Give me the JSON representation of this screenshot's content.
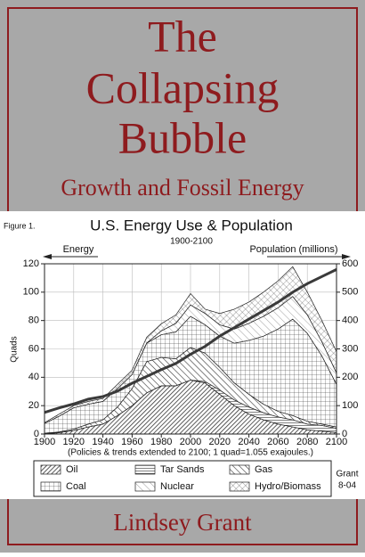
{
  "cover": {
    "title_lines": [
      "The",
      "Collapsing",
      "Bubble"
    ],
    "subtitle": "Growth and Fossil Energy",
    "author": "Lindsey Grant"
  },
  "chart_data": {
    "type": "stacked-area",
    "figure_label": "Figure 1.",
    "title": "U.S. Energy Use & Population",
    "subtitle": "1900-2100",
    "y_arrow_label": "Energy",
    "ylabel": "Quads",
    "y2label": "Population (millions)",
    "note": "(Policies & trends extended to 2100; 1 quad=1.055 exajoules.)",
    "credit": [
      "Grant",
      "8-04"
    ],
    "x": [
      1900,
      1910,
      1920,
      1930,
      1940,
      1950,
      1960,
      1970,
      1980,
      1990,
      2000,
      2010,
      2020,
      2030,
      2040,
      2050,
      2060,
      2070,
      2080,
      2090,
      2100
    ],
    "xlim": [
      1900,
      2100
    ],
    "xticks": [
      1900,
      1920,
      1940,
      1960,
      1980,
      2000,
      2020,
      2040,
      2060,
      2080,
      2100
    ],
    "ylim": [
      0,
      120
    ],
    "yticks": [
      0,
      20,
      40,
      60,
      80,
      100,
      120
    ],
    "y2lim": [
      0,
      600
    ],
    "y2ticks": [
      0,
      100,
      200,
      300,
      400,
      500,
      600
    ],
    "series": [
      {
        "name": "Oil",
        "color": "#333",
        "pattern": "dense-diagonal",
        "values": [
          0.1,
          1,
          2.5,
          5,
          7,
          13,
          20,
          29,
          34,
          34,
          38,
          36,
          28,
          20,
          14,
          10,
          7,
          5,
          3,
          2,
          1
        ]
      },
      {
        "name": "Tar Sands",
        "color": "#333",
        "pattern": "horizontal",
        "values": [
          0,
          0,
          0,
          0,
          0,
          0,
          0,
          0,
          0,
          0,
          0,
          1,
          3,
          4,
          5,
          5,
          5,
          5,
          4,
          4,
          3
        ]
      },
      {
        "name": "Gas",
        "color": "#333",
        "pattern": "diagonal",
        "values": [
          0.3,
          0.5,
          1,
          2,
          3,
          6,
          12,
          22,
          20,
          19,
          23,
          20,
          16,
          12,
          9,
          6,
          4,
          3,
          2,
          1,
          1
        ]
      },
      {
        "name": "Coal",
        "color": "#444",
        "pattern": "grid",
        "values": [
          7,
          11,
          15,
          14,
          13,
          13,
          10,
          13,
          16,
          19,
          22,
          20,
          22,
          28,
          38,
          48,
          58,
          68,
          62,
          48,
          30
        ]
      },
      {
        "name": "Nuclear",
        "color": "#666",
        "pattern": "light-diagonal",
        "values": [
          0,
          0,
          0,
          0,
          0,
          0,
          0,
          0.2,
          2.7,
          6,
          8,
          8,
          8,
          10,
          12,
          14,
          15,
          16,
          13,
          10,
          8
        ]
      },
      {
        "name": "Hydro/Biomass",
        "color": "#555",
        "pattern": "crosshatch",
        "values": [
          0.6,
          1.5,
          1.5,
          2,
          2,
          3,
          3,
          4,
          5,
          6,
          8,
          3,
          8,
          14,
          15,
          17,
          19,
          21,
          16,
          15,
          15
        ]
      },
      {
        "axis": "y2",
        "color": "#3a3a3a",
        "values": [
          76,
          92,
          106,
          123,
          132,
          151,
          179,
          203,
          227,
          249,
          281,
          309,
          345,
          375,
          405,
          435,
          465,
          500,
          530,
          555,
          580
        ]
      }
    ]
  }
}
